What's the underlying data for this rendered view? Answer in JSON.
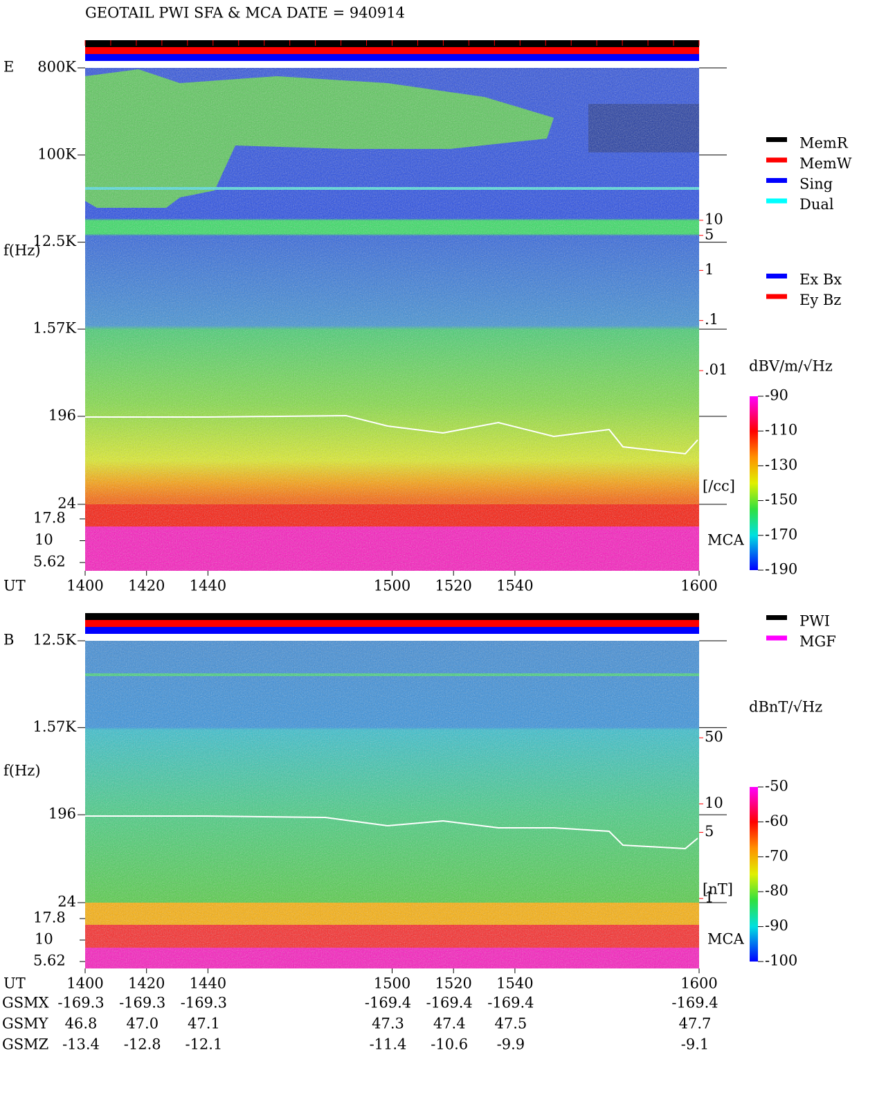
{
  "title": "GEOTAIL  PWI SFA & MCA   DATE = 940914",
  "chart_data": [
    {
      "type": "spectrogram",
      "panel_label": "E",
      "y_label": "f(Hz)",
      "x_label": "UT",
      "log_y": true,
      "xlim": [
        1400,
        1600
      ],
      "xticks": [
        1400,
        1420,
        1440,
        1500,
        1520,
        1540,
        1600
      ],
      "ylim": [
        24,
        800000
      ],
      "yticks": [
        {
          "value": 800000,
          "label": "800K"
        },
        {
          "value": 100000,
          "label": "100K"
        },
        {
          "value": 12500,
          "label": "12.5K"
        },
        {
          "value": 1570,
          "label": "1.57K"
        },
        196,
        24
      ],
      "mca_label": "MCA",
      "mca_ticks": [
        17.8,
        10,
        5.62
      ],
      "right_ticks": [
        10,
        5,
        1,
        {
          "value": 0.1,
          "label": ".1"
        },
        {
          "value": 0.01,
          "label": ".01"
        }
      ],
      "right_unit": "[/cc]",
      "right_color": "#ff0000",
      "colorbar": {
        "label": "dBV/m/√Hz",
        "lim": [
          -190,
          -90
        ],
        "ticks": [
          -90,
          -110,
          -130,
          -150,
          -170,
          -190
        ]
      },
      "legend": [
        {
          "name": "MemR",
          "color": "#000000"
        },
        {
          "name": "MemW",
          "color": "#ff0000"
        },
        {
          "name": "Sing",
          "color": "#0000ff"
        },
        {
          "name": "Dual",
          "color": "#00ffff"
        }
      ],
      "legend2": [
        {
          "name": "Ex Bx",
          "color": "#0000ff"
        },
        {
          "name": "Ey Bz",
          "color": "#ff0000"
        }
      ]
    },
    {
      "type": "spectrogram",
      "panel_label": "B",
      "y_label": "f(Hz)",
      "x_label": "UT",
      "log_y": true,
      "xlim": [
        1400,
        1600
      ],
      "xticks": [
        1400,
        1420,
        1440,
        1500,
        1520,
        1540,
        1600
      ],
      "ylim": [
        24,
        12500
      ],
      "yticks": [
        {
          "value": 12500,
          "label": "12.5K"
        },
        {
          "value": 1570,
          "label": "1.57K"
        },
        196,
        24
      ],
      "mca_label": "MCA",
      "mca_ticks": [
        17.8,
        10,
        5.62
      ],
      "right_ticks": [
        50,
        10,
        5,
        1
      ],
      "right_unit": "[nT]",
      "right_color": "#ff0000",
      "colorbar": {
        "label": "dBnT/√Hz",
        "lim": [
          -100,
          -50
        ],
        "ticks": [
          -50,
          -60,
          -70,
          -80,
          -90,
          -100
        ]
      },
      "legend": [
        {
          "name": "PWI",
          "color": "#000000"
        },
        {
          "name": "MGF",
          "color": "#ff00ff"
        }
      ]
    }
  ],
  "orbit": {
    "rows": [
      {
        "name": "GSMX",
        "values": [
          "-169.3",
          "-169.3",
          "-169.3",
          "-169.4",
          "-169.4",
          "-169.4",
          "-169.4"
        ]
      },
      {
        "name": "GSMY",
        "values": [
          "46.8",
          "47.0",
          "47.1",
          "47.3",
          "47.4",
          "47.5",
          "47.7"
        ]
      },
      {
        "name": "GSMZ",
        "values": [
          "-13.4",
          "-12.8",
          "-12.1",
          "-11.4",
          "-10.6",
          "-9.9",
          "-9.1"
        ]
      }
    ]
  }
}
